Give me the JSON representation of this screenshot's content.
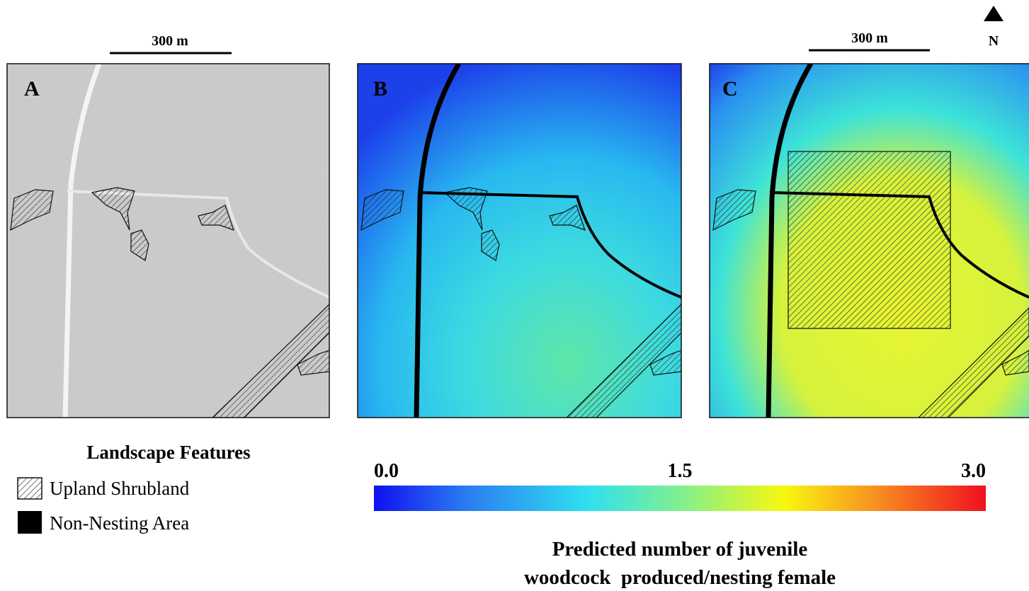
{
  "panels": [
    {
      "label": "A"
    },
    {
      "label": "B"
    },
    {
      "label": "C"
    }
  ],
  "scale_bars": [
    {
      "label": "300 m"
    },
    {
      "label": "300 m"
    }
  ],
  "north_arrow": {
    "label": "N"
  },
  "legend": {
    "title": "Landscape Features",
    "items": [
      {
        "label": "Upland Shrubland"
      },
      {
        "label": "Non-Nesting Area"
      }
    ]
  },
  "colorbar": {
    "range": [
      0,
      3
    ],
    "ticks": [
      {
        "value": 0,
        "label": "0.0"
      },
      {
        "value": 1.5,
        "label": "1.5"
      },
      {
        "value": 3,
        "label": "3.0"
      }
    ],
    "title_lines": [
      "Predicted number of juvenile",
      "woodcock  produced/nesting female"
    ]
  }
}
